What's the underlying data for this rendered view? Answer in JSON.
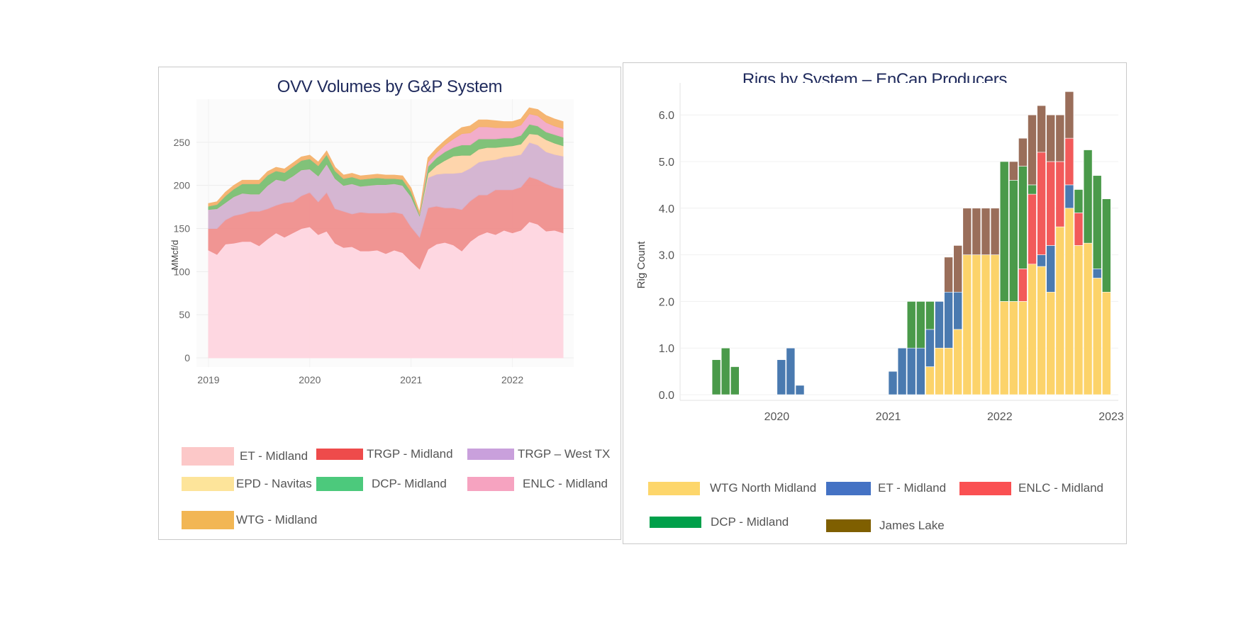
{
  "chart_data": [
    {
      "type": "area",
      "stacked": true,
      "title": "OVV Volumes by G&P System",
      "ylabel": "MMcf/d",
      "xlabel": "",
      "ylim": [
        0,
        300
      ],
      "x_start": "2019-01",
      "x_end": "2022-07",
      "xticks": [
        "2019",
        "2020",
        "2021",
        "2022"
      ],
      "yticks": [
        0,
        50,
        100,
        150,
        200,
        250
      ],
      "grid": true,
      "legend_position": "bottom",
      "x": [
        "2019-01",
        "2019-02",
        "2019-03",
        "2019-04",
        "2019-05",
        "2019-06",
        "2019-07",
        "2019-08",
        "2019-09",
        "2019-10",
        "2019-11",
        "2019-12",
        "2020-01",
        "2020-02",
        "2020-03",
        "2020-04",
        "2020-05",
        "2020-06",
        "2020-07",
        "2020-08",
        "2020-09",
        "2020-10",
        "2020-11",
        "2020-12",
        "2021-01",
        "2021-02",
        "2021-03",
        "2021-04",
        "2021-05",
        "2021-06",
        "2021-07",
        "2021-08",
        "2021-09",
        "2021-10",
        "2021-11",
        "2021-12",
        "2022-01",
        "2022-02",
        "2022-03",
        "2022-04",
        "2022-05",
        "2022-06",
        "2022-07"
      ],
      "series": [
        {
          "name": "ET - Midland",
          "color": "#ffd6e0",
          "values": [
            125,
            120,
            132,
            133,
            135,
            135,
            130,
            138,
            145,
            140,
            145,
            150,
            152,
            143,
            147,
            133,
            128,
            129,
            124,
            124,
            125,
            121,
            125,
            122,
            112,
            103,
            126,
            132,
            134,
            131,
            124,
            135,
            142,
            146,
            143,
            148,
            145,
            148,
            158,
            155,
            147,
            148,
            145
          ]
        },
        {
          "name": "TRGP - Midland",
          "color": "#f0908e",
          "values": [
            25,
            30,
            28,
            32,
            32,
            35,
            40,
            35,
            32,
            40,
            36,
            38,
            40,
            38,
            45,
            40,
            42,
            38,
            45,
            44,
            43,
            47,
            44,
            45,
            40,
            37,
            48,
            44,
            40,
            43,
            48,
            47,
            47,
            43,
            52,
            47,
            50,
            50,
            52,
            52,
            55,
            50,
            51
          ]
        },
        {
          "name": "TRGP – West TX",
          "color": "#d4b3d0",
          "values": [
            22,
            23,
            20,
            22,
            24,
            20,
            20,
            27,
            30,
            25,
            30,
            30,
            27,
            30,
            33,
            35,
            30,
            35,
            30,
            32,
            33,
            33,
            33,
            33,
            35,
            25,
            35,
            37,
            40,
            40,
            43,
            38,
            38,
            40,
            35,
            38,
            39,
            38,
            40,
            40,
            37,
            38,
            38
          ]
        },
        {
          "name": "EPD - Navitas",
          "color": "#ffd4a8",
          "values": [
            0,
            0,
            0,
            0,
            0,
            0,
            0,
            0,
            0,
            0,
            0,
            0,
            0,
            0,
            0,
            0,
            0,
            0,
            0,
            0,
            0,
            0,
            0,
            0,
            0,
            0,
            5,
            10,
            15,
            20,
            20,
            15,
            15,
            15,
            14,
            12,
            12,
            12,
            10,
            12,
            14,
            13,
            12
          ]
        },
        {
          "name": "DCP- Midland",
          "color": "#7bbf73",
          "values": [
            4,
            5,
            8,
            9,
            11,
            12,
            12,
            12,
            10,
            10,
            11,
            11,
            12,
            12,
            11,
            9,
            8,
            8,
            8,
            8,
            8,
            7,
            6,
            7,
            6,
            2,
            8,
            9,
            10,
            10,
            12,
            12,
            12,
            10,
            10,
            10,
            9,
            10,
            11,
            10,
            9,
            10,
            10
          ]
        },
        {
          "name": "ENLC - Midland",
          "color": "#f2a9c8",
          "values": [
            0,
            0,
            0,
            0,
            0,
            0,
            0,
            0,
            0,
            0,
            0,
            0,
            0,
            0,
            0,
            0,
            0,
            0,
            0,
            0,
            0,
            0,
            0,
            0,
            0,
            0,
            5,
            6,
            8,
            10,
            13,
            14,
            14,
            14,
            13,
            12,
            12,
            12,
            12,
            12,
            11,
            10,
            10
          ]
        },
        {
          "name": "WTG - Midland",
          "color": "#f5b26b",
          "values": [
            3,
            3,
            4,
            4,
            4,
            4,
            4,
            4,
            4,
            4,
            4,
            4,
            4,
            4,
            4,
            4,
            4,
            4,
            4,
            4,
            4,
            4,
            4,
            4,
            4,
            2,
            5,
            5,
            5,
            6,
            7,
            8,
            8,
            8,
            8,
            7,
            7,
            7,
            7,
            7,
            8,
            8,
            8
          ]
        }
      ]
    },
    {
      "type": "bar",
      "stacked": true,
      "title": "Rigs by System – EnCap Producers",
      "title_pre": "Rigs by System – ",
      "title_word": "EnCap",
      "title_post": " Producers",
      "ylabel": "Rig Count",
      "xlabel": "",
      "ylim": [
        0,
        6.5
      ],
      "x_start": "2019-09",
      "x_end": "2023-04",
      "xticks": [
        "2020",
        "2021",
        "2022",
        "2023"
      ],
      "yticks": [
        "0.0",
        "1.0",
        "2.0",
        "3.0",
        "4.0",
        "5.0",
        "6.0"
      ],
      "grid": true,
      "legend_position": "bottom",
      "x": [
        "2019-09",
        "2019-10",
        "2019-11",
        "2019-12",
        "2020-01",
        "2020-02",
        "2020-03",
        "2020-04",
        "2020-05",
        "2020-06",
        "2020-07",
        "2020-08",
        "2020-09",
        "2020-10",
        "2020-11",
        "2020-12",
        "2021-01",
        "2021-02",
        "2021-03",
        "2021-04",
        "2021-05",
        "2021-06",
        "2021-07",
        "2021-08",
        "2021-09",
        "2021-10",
        "2021-11",
        "2021-12",
        "2022-01",
        "2022-02",
        "2022-03",
        "2022-04",
        "2022-05",
        "2022-06",
        "2022-07",
        "2022-08",
        "2022-09",
        "2022-10",
        "2022-11",
        "2022-12",
        "2023-01",
        "2023-02",
        "2023-03",
        "2023-04"
      ],
      "series": [
        {
          "name": "WTG North Midland",
          "color": "#fcd36a",
          "values": [
            0,
            0,
            0,
            0,
            0,
            0,
            0,
            0,
            0,
            0,
            0,
            0,
            0,
            0,
            0,
            0,
            0,
            0,
            0,
            0,
            0,
            0,
            0,
            0,
            0.6,
            1,
            1,
            1.4,
            3,
            3,
            3,
            3,
            2,
            2,
            2,
            2.8,
            2.75,
            2.2,
            3.6,
            4,
            3.2,
            3.25,
            2.5,
            2.2
          ]
        },
        {
          "name": "ET - Midland",
          "color": "#4a7ab0",
          "values": [
            0,
            0,
            0,
            0,
            0,
            0,
            0,
            0,
            0.75,
            1,
            0.2,
            0,
            0,
            0,
            0,
            0,
            0,
            0,
            0,
            0,
            0.5,
            1,
            1,
            1,
            0.8,
            1,
            1.2,
            0.8,
            0,
            0,
            0,
            0,
            0,
            0,
            0,
            0,
            0.25,
            1,
            0,
            0.5,
            0,
            0,
            0.2,
            0
          ]
        },
        {
          "name": "ENLC - Midland",
          "color": "#f25a5a",
          "values": [
            0,
            0,
            0,
            0,
            0,
            0,
            0,
            0,
            0,
            0,
            0,
            0,
            0,
            0,
            0,
            0,
            0,
            0,
            0,
            0,
            0,
            0,
            0,
            0,
            0,
            0,
            0,
            0,
            0,
            0,
            0,
            0,
            0,
            0,
            0.7,
            1.5,
            2.2,
            1.8,
            1.4,
            1,
            0.7,
            0,
            0,
            0
          ]
        },
        {
          "name": "DCP - Midland",
          "color": "#4a9a4a",
          "values": [
            0,
            0.75,
            1,
            0.6,
            0,
            0,
            0,
            0,
            0,
            0,
            0,
            0,
            0,
            0,
            0,
            0,
            0,
            0,
            0,
            0,
            0,
            0,
            1,
            1,
            0.6,
            0,
            0,
            0,
            0,
            0,
            0,
            0,
            3,
            2.6,
            2.2,
            0.2,
            0,
            0,
            0,
            0,
            0.5,
            2,
            2,
            2
          ]
        },
        {
          "name": "James Lake",
          "color": "#9a6e5a",
          "values": [
            0,
            0,
            0,
            0,
            0,
            0,
            0,
            0,
            0,
            0,
            0,
            0,
            0,
            0,
            0,
            0,
            0,
            0,
            0,
            0,
            0,
            0,
            0,
            0,
            0,
            0,
            0.75,
            1,
            1,
            1,
            1,
            1,
            0,
            0.4,
            0.6,
            1.5,
            1,
            1,
            1,
            1,
            0,
            0,
            0,
            0
          ]
        }
      ]
    }
  ],
  "legend1": [
    {
      "label": "ET - Midland",
      "color": "#fcc8c8"
    },
    {
      "label": "TRGP - Midland",
      "color": "#ee4b4b"
    },
    {
      "label": "TRGP – West TX",
      "color": "#c9a0dc"
    },
    {
      "label": "EPD - Navitas",
      "color": "#fde49a"
    },
    {
      "label": "DCP- Midland",
      "color": "#4cc97c"
    },
    {
      "label": "ENLC - Midland",
      "color": "#f6a3c0"
    },
    {
      "label": "WTG - Midland",
      "color": "#f2b654"
    }
  ],
  "legend2": [
    {
      "label": "WTG North Midland",
      "color": "#fdd66b"
    },
    {
      "label": "ET - Midland",
      "color": "#4472c4"
    },
    {
      "label": "ENLC - Midland",
      "color": "#fa5052"
    },
    {
      "label": "DCP - Midland",
      "color": "#00a04a"
    },
    {
      "label": "James Lake",
      "color": "#7f5f00"
    }
  ]
}
